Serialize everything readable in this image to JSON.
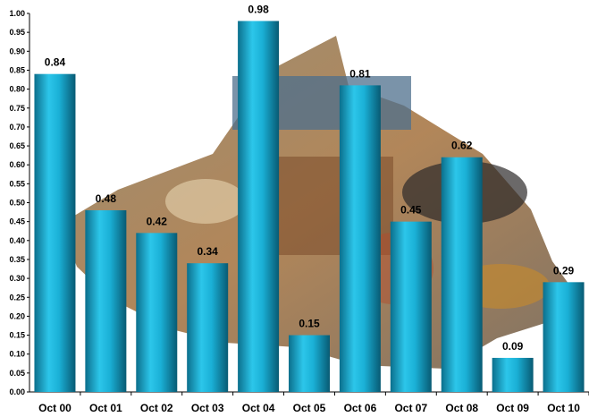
{
  "chart_data": {
    "type": "bar",
    "categories": [
      "Oct 00",
      "Oct 01",
      "Oct 02",
      "Oct 03",
      "Oct 04",
      "Oct 05",
      "Oct 06",
      "Oct 07",
      "Oct 08",
      "Oct 09",
      "Oct 10"
    ],
    "values": [
      0.84,
      0.48,
      0.42,
      0.34,
      0.98,
      0.15,
      0.81,
      0.45,
      0.62,
      0.09,
      0.29
    ],
    "data_labels": [
      "0.84",
      "0.48",
      "0.42",
      "0.34",
      "0.98",
      "0.15",
      "0.81",
      "0.45",
      "0.62",
      "0.09",
      "0.29"
    ],
    "ylim": [
      0,
      1.0
    ],
    "yticks": [
      "0.00",
      "0.05",
      "0.10",
      "0.15",
      "0.20",
      "0.25",
      "0.30",
      "0.35",
      "0.40",
      "0.45",
      "0.50",
      "0.55",
      "0.60",
      "0.65",
      "0.70",
      "0.75",
      "0.80",
      "0.85",
      "0.90",
      "0.95",
      "1.00"
    ],
    "title": "",
    "xlabel": "",
    "ylabel": "",
    "grid": false,
    "legend": "none",
    "bar_color": "#1aa9cf",
    "background": "collage of office and kitchen photographs"
  }
}
